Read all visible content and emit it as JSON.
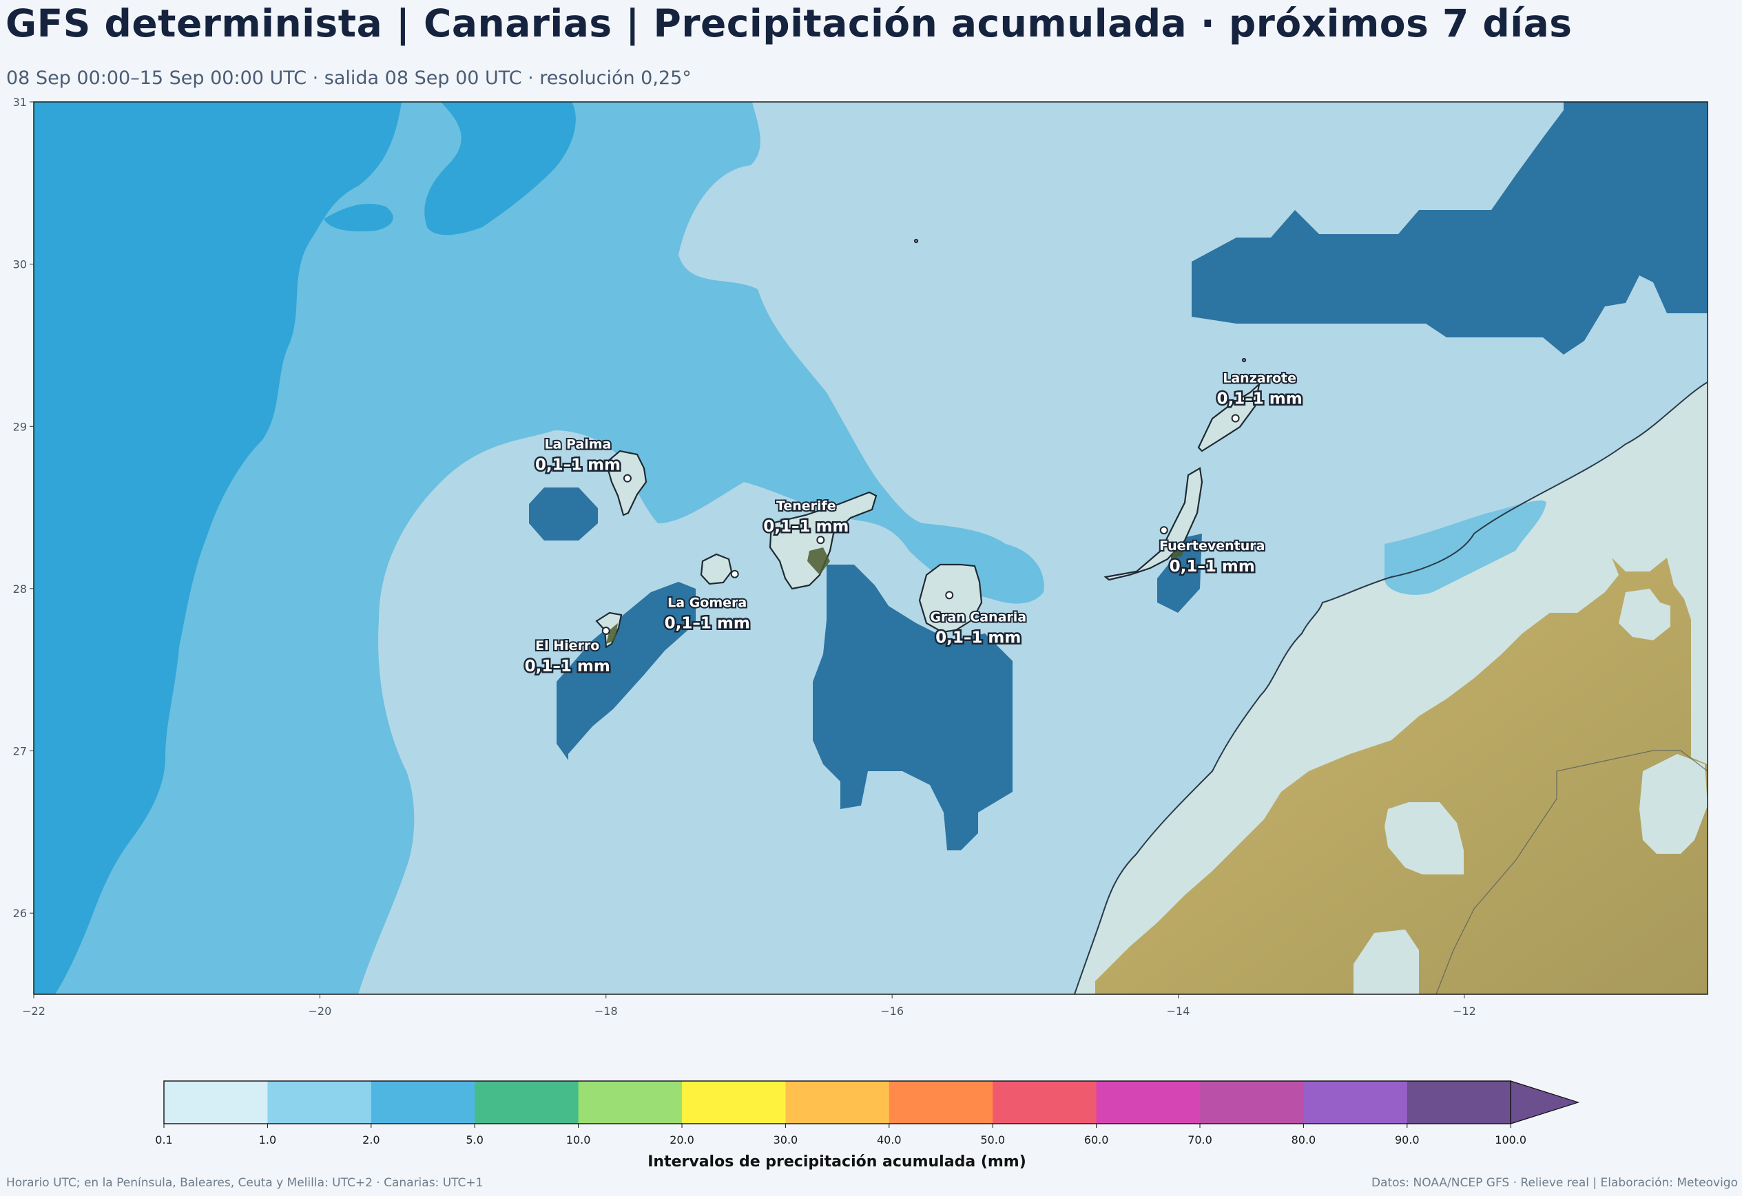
{
  "header": {
    "title": "GFS determinista | Canarias | Precipitación acumulada · próximos 7 días",
    "subtitle": "08 Sep 00:00–15 Sep 00:00 UTC · salida 08 Sep 00 UTC · resolución 0,25°"
  },
  "map": {
    "lon_range": [
      -22,
      -10.3
    ],
    "lat_range": [
      25.5,
      31
    ],
    "x_ticks": [
      "−22",
      "−20",
      "−18",
      "−16",
      "−14",
      "−12"
    ],
    "y_ticks": [
      "26",
      "27",
      "28",
      "29",
      "30",
      "31"
    ],
    "field_colors": {
      "lt_0_1": "#b2d7e7",
      "0_1_to_1": "#6bbfe0",
      "1_to_2": "#31a5d8",
      "dry_patch": "#2c74a2",
      "land_light": "#cfe3e2",
      "land_relief": "#c4b06a"
    },
    "islands": [
      {
        "name": "La Palma",
        "value": "0,1–1 mm",
        "lon": -17.85,
        "lat": 28.68
      },
      {
        "name": "Tenerife",
        "value": "0,1–1 mm",
        "lon": -16.5,
        "lat": 28.3
      },
      {
        "name": "La Gomera",
        "value": "0,1–1 mm",
        "lon": -17.1,
        "lat": 28.09
      },
      {
        "name": "El Hierro",
        "value": "0,1–1 mm",
        "lon": -18.0,
        "lat": 27.74
      },
      {
        "name": "Gran Canaria",
        "value": "0,1–1 mm",
        "lon": -15.6,
        "lat": 27.96
      },
      {
        "name": "Lanzarote",
        "value": "0,1–1 mm",
        "lon": -13.6,
        "lat": 29.05
      },
      {
        "name": "Fuerteventura",
        "value": "0,1–1 mm",
        "lon": -14.1,
        "lat": 28.36
      }
    ]
  },
  "colorbar": {
    "label": "Intervalos de precipitación acumulada (mm)",
    "boundaries": [
      "0.1",
      "1.0",
      "2.0",
      "5.0",
      "10.0",
      "20.0",
      "30.0",
      "40.0",
      "50.0",
      "60.0",
      "70.0",
      "80.0",
      "90.0",
      "100.0"
    ],
    "colors": [
      "#d6eef6",
      "#8dd3ee",
      "#4fb6e2",
      "#45bc8a",
      "#9bde74",
      "#fff23e",
      "#ffc04d",
      "#ff8a4a",
      "#f05a6e",
      "#d645b4",
      "#bb50a8",
      "#9660c8",
      "#6c4f8e"
    ],
    "extend_color": "#6c4f8e"
  },
  "footer": {
    "left": "Horario UTC; en la Península, Baleares, Ceuta y Melilla: UTC+2 · Canarias: UTC+1",
    "right": "Datos: NOAA/NCEP GFS · Relieve real | Elaboración: Meteovigo"
  }
}
